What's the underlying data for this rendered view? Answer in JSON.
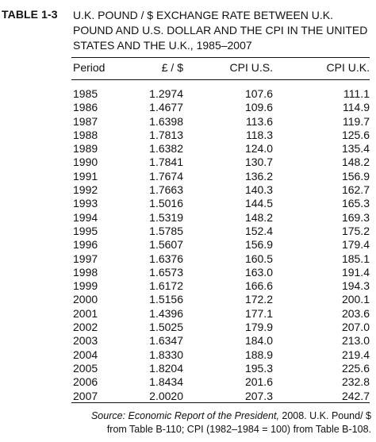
{
  "table": {
    "label": "TABLE 1-3",
    "title": "U.K. POUND / $ EXCHANGE RATE BETWEEN U.K. POUND AND U.S. DOLLAR AND THE CPI IN THE UNITED STATES AND THE U.K., 1985–2007",
    "headers": {
      "period": "Period",
      "rate": "£ / $",
      "cpi_us": "CPI U.S.",
      "cpi_uk": "CPI U.K."
    },
    "rows": [
      [
        "1985",
        "1.2974",
        "107.6",
        "111.1"
      ],
      [
        "1986",
        "1.4677",
        "109.6",
        "114.9"
      ],
      [
        "1987",
        "1.6398",
        "113.6",
        "119.7"
      ],
      [
        "1988",
        "1.7813",
        "118.3",
        "125.6"
      ],
      [
        "1989",
        "1.6382",
        "124.0",
        "135.4"
      ],
      [
        "1990",
        "1.7841",
        "130.7",
        "148.2"
      ],
      [
        "1991",
        "1.7674",
        "136.2",
        "156.9"
      ],
      [
        "1992",
        "1.7663",
        "140.3",
        "162.7"
      ],
      [
        "1993",
        "1.5016",
        "144.5",
        "165.3"
      ],
      [
        "1994",
        "1.5319",
        "148.2",
        "169.3"
      ],
      [
        "1995",
        "1.5785",
        "152.4",
        "175.2"
      ],
      [
        "1996",
        "1.5607",
        "156.9",
        "179.4"
      ],
      [
        "1997",
        "1.6376",
        "160.5",
        "185.1"
      ],
      [
        "1998",
        "1.6573",
        "163.0",
        "191.4"
      ],
      [
        "1999",
        "1.6172",
        "166.6",
        "194.3"
      ],
      [
        "2000",
        "1.5156",
        "172.2",
        "200.1"
      ],
      [
        "2001",
        "1.4396",
        "177.1",
        "203.6"
      ],
      [
        "2002",
        "1.5025",
        "179.9",
        "207.0"
      ],
      [
        "2003",
        "1.6347",
        "184.0",
        "213.0"
      ],
      [
        "2004",
        "1.8330",
        "188.9",
        "219.4"
      ],
      [
        "2005",
        "1.8204",
        "195.3",
        "225.6"
      ],
      [
        "2006",
        "1.8434",
        "201.6",
        "232.8"
      ],
      [
        "2007",
        "2.0020",
        "207.3",
        "242.7"
      ]
    ],
    "source": {
      "label": "Source:",
      "publication": "Economic Report of the President,",
      "text": "2008. U.K. Pound/ $ from Table B-110; CPI (1982–1984 = 100) from Table B-108."
    }
  }
}
